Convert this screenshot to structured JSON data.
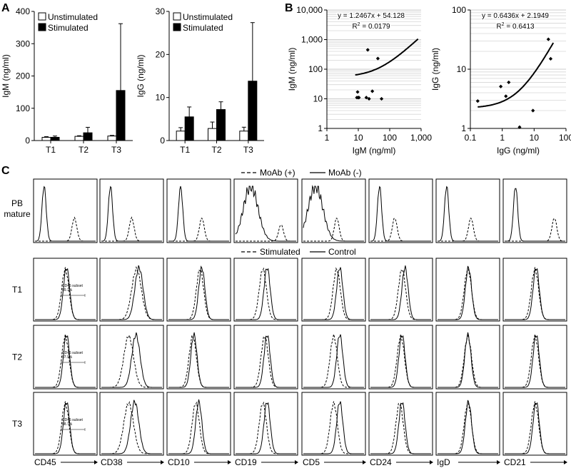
{
  "panels": {
    "A": "A",
    "B": "B",
    "C": "C"
  },
  "chart_data": [
    {
      "id": "A-IgM",
      "type": "bar",
      "ylabel": "IgM (ng/ml)",
      "ylim": [
        0,
        400
      ],
      "yticks": [
        0,
        100,
        200,
        300,
        400
      ],
      "categories": [
        "T1",
        "T2",
        "T3"
      ],
      "legend_position": "top-left",
      "series": [
        {
          "name": "Unstimulated",
          "color": "#ffffff",
          "values": [
            10,
            13,
            14
          ],
          "errors": [
            2,
            2,
            2
          ]
        },
        {
          "name": "Stimulated",
          "color": "#000000",
          "values": [
            10,
            24,
            155
          ],
          "errors": [
            4,
            17,
            207
          ]
        }
      ]
    },
    {
      "id": "A-IgG",
      "type": "bar",
      "ylabel": "IgG (ng/ml)",
      "ylim": [
        0,
        30
      ],
      "yticks": [
        0,
        10,
        20,
        30
      ],
      "categories": [
        "T1",
        "T2",
        "T3"
      ],
      "legend_position": "top-left",
      "series": [
        {
          "name": "Unstimulated",
          "color": "#ffffff",
          "values": [
            2.2,
            2.8,
            2.2
          ],
          "errors": [
            0.8,
            1.5,
            0.9
          ]
        },
        {
          "name": "Stimulated",
          "color": "#000000",
          "values": [
            5.5,
            7.2,
            13.8
          ],
          "errors": [
            2.3,
            1.8,
            13.6
          ]
        }
      ]
    },
    {
      "id": "B-IgM",
      "type": "scatter",
      "log_scale": true,
      "xlabel": "IgM (ng/ml)",
      "ylabel": "IgM (ng/ml)",
      "xlim": [
        1,
        1000
      ],
      "ylim": [
        1,
        10000
      ],
      "xticks": [
        "1",
        "10",
        "100",
        "1,000"
      ],
      "yticks": [
        "1",
        "10",
        "100",
        "1,000",
        "10,000"
      ],
      "grid": true,
      "equation": "y = 1.2467x + 54.128",
      "r2_prefix": "R",
      "r2_sup": "2",
      "r2_value": " = 0.0179",
      "fit": {
        "slope": 1.2467,
        "intercept": 54.128,
        "x_range": [
          8,
          800
        ]
      },
      "points": [
        {
          "x": 9,
          "y": 11
        },
        {
          "x": 9.5,
          "y": 17
        },
        {
          "x": 10,
          "y": 11
        },
        {
          "x": 10.5,
          "y": 11
        },
        {
          "x": 18,
          "y": 11
        },
        {
          "x": 20,
          "y": 450
        },
        {
          "x": 22,
          "y": 10
        },
        {
          "x": 28,
          "y": 18
        },
        {
          "x": 42,
          "y": 230
        },
        {
          "x": 55,
          "y": 10
        }
      ]
    },
    {
      "id": "B-IgG",
      "type": "scatter",
      "log_scale": true,
      "xlabel": "IgG (ng/ml)",
      "ylabel": "IgG (ng/ml)",
      "xlim": [
        0.1,
        100
      ],
      "ylim": [
        1,
        100
      ],
      "xticks": [
        "0.1",
        "1",
        "10",
        "100"
      ],
      "yticks": [
        "1",
        "10",
        "100"
      ],
      "grid": true,
      "equation": "y = 0.6436x + 2.1949",
      "r2_prefix": "R",
      "r2_sup": "2",
      "r2_value": " = 0.6413",
      "fit": {
        "slope": 0.6436,
        "intercept": 2.1949,
        "x_range": [
          0.17,
          40
        ]
      },
      "points": [
        {
          "x": 0.17,
          "y": 2.9
        },
        {
          "x": 0.9,
          "y": 5.1
        },
        {
          "x": 1.3,
          "y": 3.5
        },
        {
          "x": 1.6,
          "y": 6
        },
        {
          "x": 3.5,
          "y": 1.05
        },
        {
          "x": 9.2,
          "y": 2.0
        },
        {
          "x": 28,
          "y": 32
        },
        {
          "x": 33,
          "y": 15
        }
      ]
    },
    {
      "id": "C-histograms",
      "type": "line",
      "markers": [
        "CD45",
        "CD38",
        "CD10",
        "CD19",
        "CD5",
        "CD24",
        "IgD",
        "CD21"
      ],
      "legend_top": {
        "dashed": "MoAb (+)",
        "solid": "MoAb (-)"
      },
      "legend_bottom": {
        "dashed": "Stimulated",
        "solid": "Control"
      },
      "rows": [
        {
          "label_line1": "PB",
          "label_line2": "mature",
          "type": "pb",
          "solid_peak": [
            0.15,
            0.15,
            0.2,
            0.25,
            0.2,
            0.15,
            0.15,
            0.18
          ],
          "dashed_peak": [
            0.65,
            0.5,
            0.55,
            0.75,
            0.55,
            0.4,
            0.55,
            0.82
          ]
        },
        {
          "label": "T1",
          "type": "sample",
          "dashed_peak": [
            0.5,
            0.58,
            0.52,
            0.45,
            0.55,
            0.52,
            0.5,
            0.5
          ],
          "solid_peak": [
            0.52,
            0.62,
            0.55,
            0.52,
            0.6,
            0.57,
            0.51,
            0.52
          ]
        },
        {
          "label": "T2",
          "type": "sample",
          "dashed_peak": [
            0.5,
            0.45,
            0.4,
            0.48,
            0.5,
            0.5,
            0.5,
            0.5
          ],
          "solid_peak": [
            0.52,
            0.57,
            0.42,
            0.52,
            0.6,
            0.52,
            0.5,
            0.52
          ]
        },
        {
          "label": "T3",
          "type": "sample",
          "dashed_peak": [
            0.5,
            0.45,
            0.45,
            0.45,
            0.5,
            0.48,
            0.5,
            0.5
          ],
          "solid_peak": [
            0.52,
            0.55,
            0.5,
            0.52,
            0.6,
            0.52,
            0.51,
            0.52
          ]
        }
      ],
      "subset_annotations": [
        {
          "row": "T1",
          "name": "CD45 subset",
          "value": "99.1%"
        },
        {
          "row": "T2",
          "name": "CD45 subset",
          "value": "97.9%"
        },
        {
          "row": "T3",
          "name": "CD45 subset",
          "value": "98.7%"
        }
      ]
    }
  ]
}
